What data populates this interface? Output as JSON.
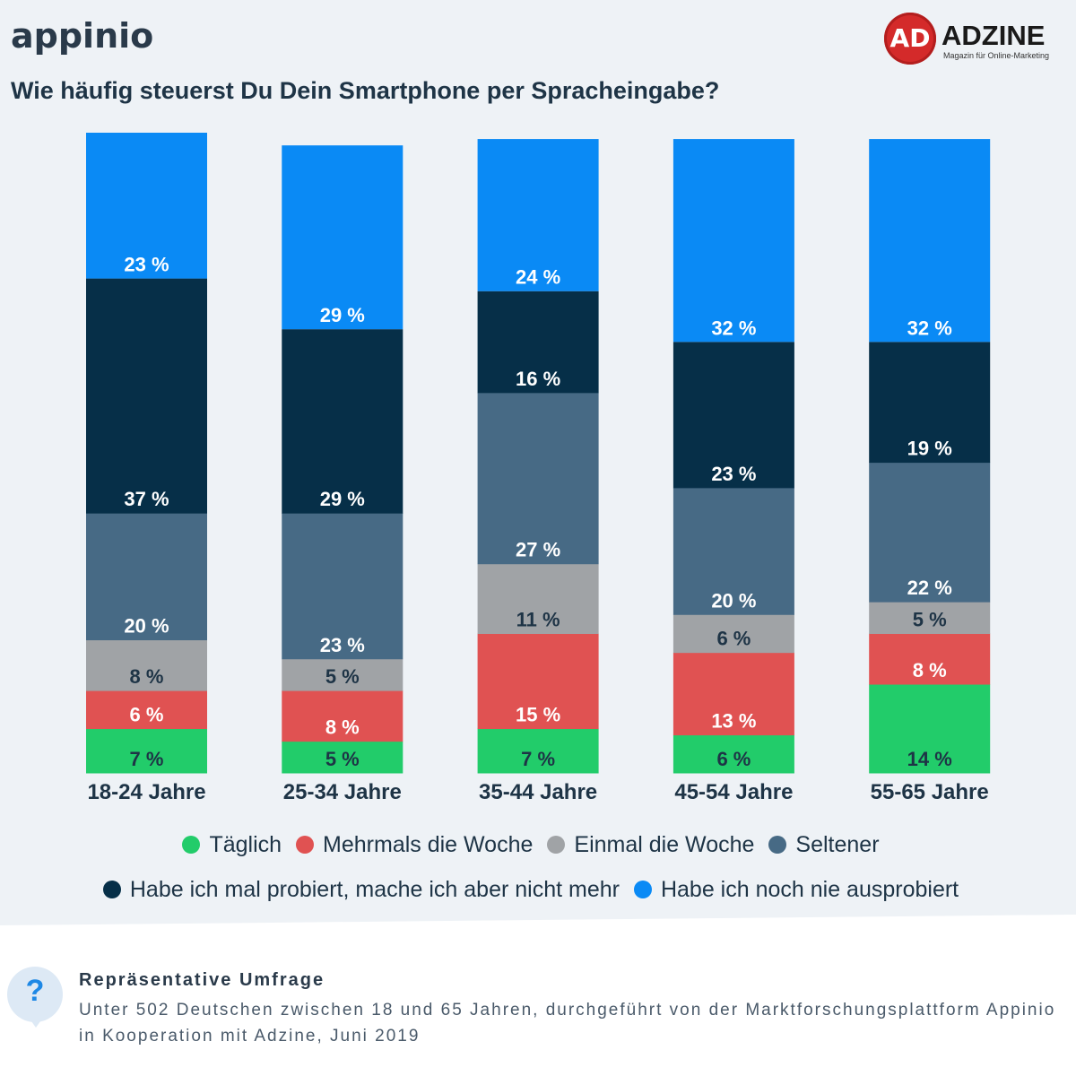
{
  "header": {
    "appinio_logo_text": "appinio",
    "adzine_logo_mark": "AD",
    "adzine_logo_word": "ADZINE",
    "adzine_logo_tagline": "Magazin für Online-Marketing"
  },
  "chart_data": {
    "type": "bar",
    "stacked": true,
    "title": "Wie häufig steuerst Du Dein Smartphone per Spracheingabe?",
    "categories": [
      "18-24 Jahre",
      "25-34 Jahre",
      "35-44 Jahre",
      "45-54 Jahre",
      "55-65 Jahre"
    ],
    "unit": "%",
    "ylim": [
      0,
      101
    ],
    "grid": false,
    "legend_position": "bottom",
    "series": [
      {
        "name": "Täglich",
        "color": "#22cc6a",
        "values": [
          7,
          5,
          7,
          6,
          14
        ],
        "label_color": "#1e3446"
      },
      {
        "name": "Mehrmals die Woche",
        "color": "#e05252",
        "values": [
          6,
          8,
          15,
          13,
          8
        ],
        "label_color": "#ffffff"
      },
      {
        "name": "Einmal die Woche",
        "color": "#a0a3a6",
        "values": [
          8,
          5,
          11,
          6,
          5
        ],
        "label_color": "#1e3446"
      },
      {
        "name": "Seltener",
        "color": "#476a85",
        "values": [
          20,
          23,
          27,
          20,
          22
        ],
        "label_color": "#ffffff"
      },
      {
        "name": "Habe ich mal probiert, mache ich aber nicht mehr",
        "color": "#062f48",
        "values": [
          37,
          29,
          16,
          23,
          19
        ],
        "label_color": "#ffffff"
      },
      {
        "name": "Habe ich noch nie ausprobiert",
        "color": "#0a8af5",
        "values": [
          23,
          29,
          24,
          32,
          32
        ],
        "label_color": "#ffffff"
      }
    ]
  },
  "legend": {
    "row1": [
      "Täglich",
      "Mehrmals die Woche",
      "Einmal die Woche",
      "Seltener"
    ],
    "row2": [
      "Habe ich mal probiert, mache ich aber nicht mehr",
      "Habe ich noch nie ausprobiert"
    ]
  },
  "footer": {
    "icon": "question-icon",
    "icon_glyph": "?",
    "title": "Repräsentative Umfrage",
    "text": "Unter 502 Deutschen zwischen 18 und 65 Jahren, durchgeführt von der Marktforschungsplattform Appinio in Kooperation mit Adzine, Juni 2019"
  }
}
